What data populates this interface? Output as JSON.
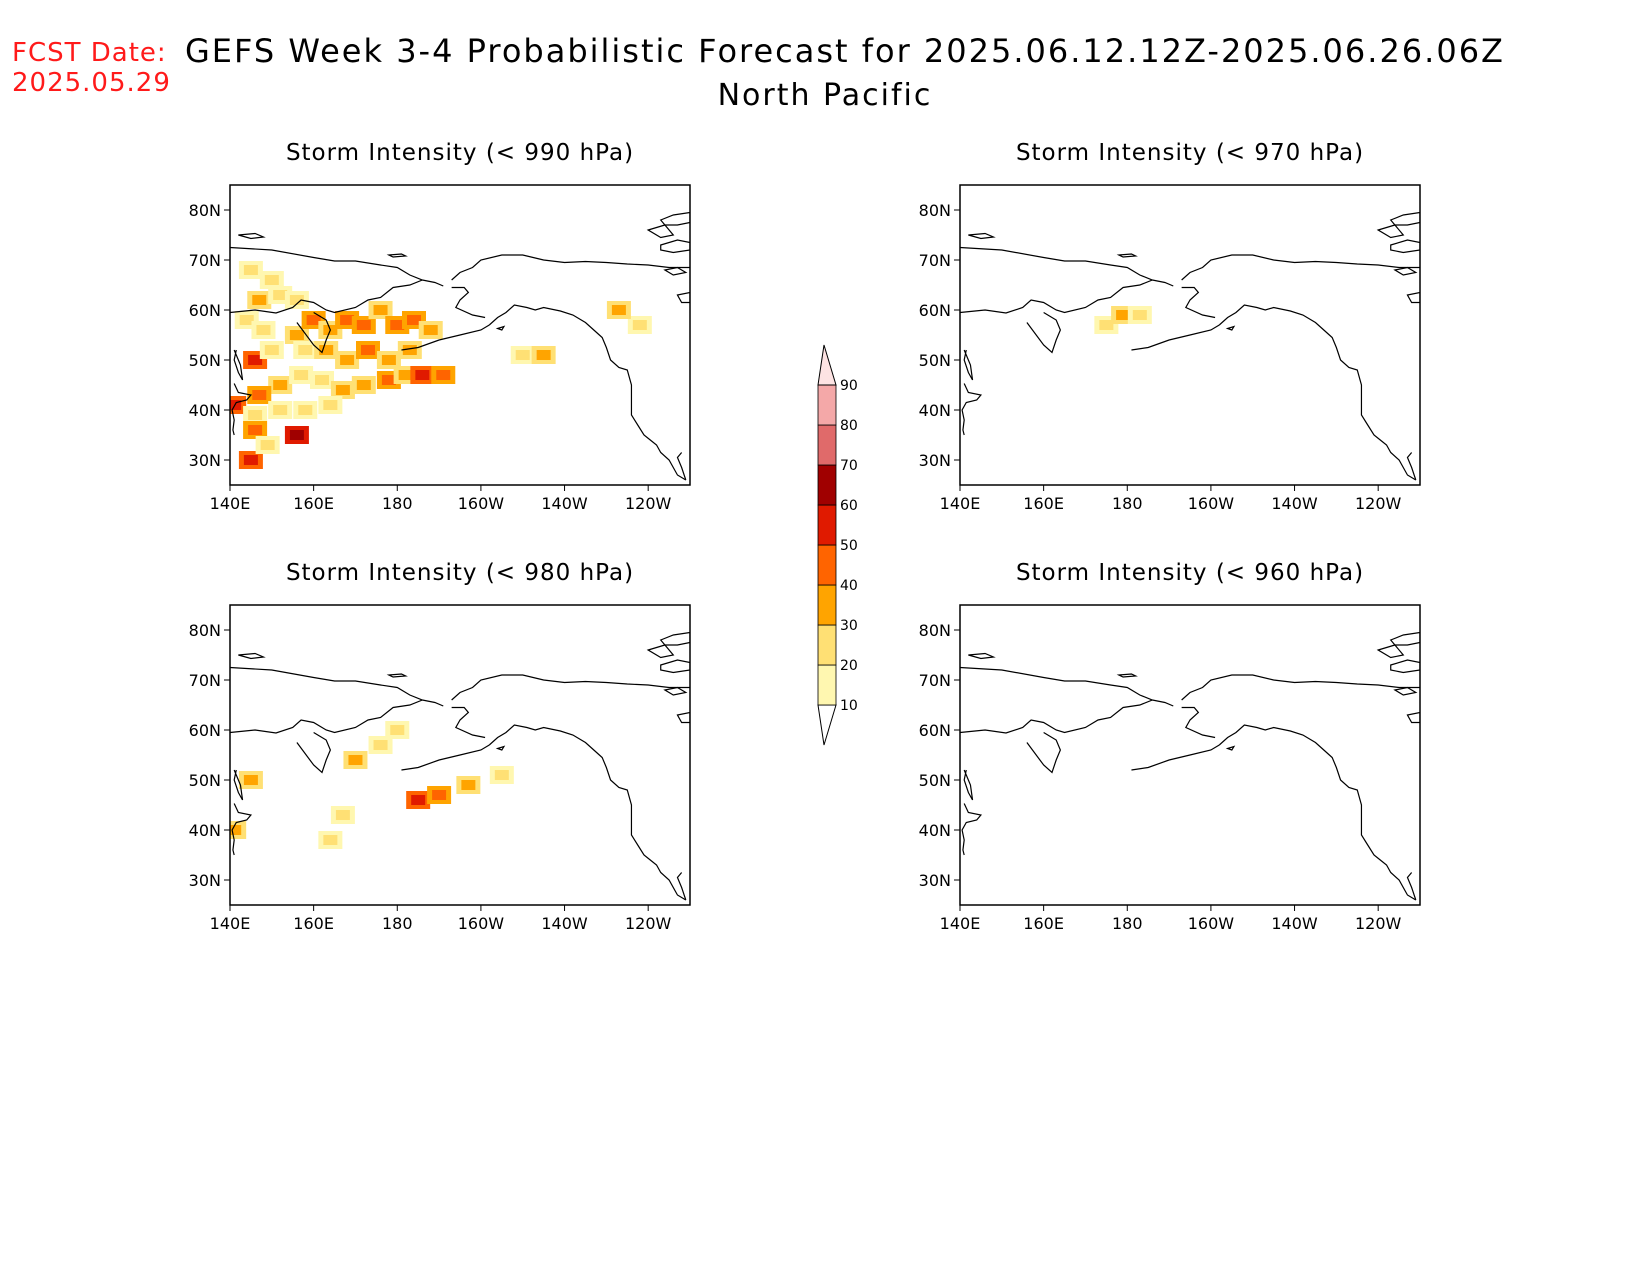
{
  "header": {
    "fcst_label": "FCST Date:",
    "fcst_date": "2025.05.29",
    "title": "GEFS Week 3-4 Probabilistic Forecast for 2025.06.12.12Z-2025.06.26.06Z",
    "subtitle": "North Pacific"
  },
  "axes": {
    "lon_labels": [
      "140E",
      "160E",
      "180",
      "160W",
      "140W",
      "120W"
    ],
    "lat_labels": [
      "80N",
      "70N",
      "60N",
      "50N",
      "40N",
      "30N"
    ]
  },
  "panels": [
    {
      "id": "p990",
      "title": "Storm Intensity (< 990 hPa)",
      "coverage": "widespread"
    },
    {
      "id": "p970",
      "title": "Storm Intensity (< 970 hPa)",
      "coverage": "small"
    },
    {
      "id": "p980",
      "title": "Storm Intensity (< 980 hPa)",
      "coverage": "scattered"
    },
    {
      "id": "p960",
      "title": "Storm Intensity (< 960 hPa)",
      "coverage": "none"
    }
  ],
  "legend": {
    "levels": [
      "10",
      "20",
      "30",
      "40",
      "50",
      "60",
      "70",
      "80",
      "90"
    ],
    "colors": [
      "#fff7b0",
      "#ffe074",
      "#ffa400",
      "#ff6400",
      "#e01a00",
      "#a00000",
      "#e06a6a",
      "#f4a8a8",
      "#fde3e3"
    ]
  },
  "shading": {
    "p990": [
      {
        "lon": 145,
        "lat": 68,
        "c": 1
      },
      {
        "lon": 150,
        "lat": 66,
        "c": 1
      },
      {
        "lon": 147,
        "lat": 62,
        "c": 2
      },
      {
        "lon": 152,
        "lat": 63,
        "c": 1
      },
      {
        "lon": 156,
        "lat": 62,
        "c": 1
      },
      {
        "lon": 144,
        "lat": 58,
        "c": 1
      },
      {
        "lon": 148,
        "lat": 56,
        "c": 1
      },
      {
        "lon": 146,
        "lat": 50,
        "c": 4
      },
      {
        "lon": 150,
        "lat": 52,
        "c": 1
      },
      {
        "lon": 156,
        "lat": 55,
        "c": 2
      },
      {
        "lon": 160,
        "lat": 58,
        "c": 3
      },
      {
        "lon": 164,
        "lat": 56,
        "c": 2
      },
      {
        "lon": 168,
        "lat": 58,
        "c": 3
      },
      {
        "lon": 172,
        "lat": 57,
        "c": 3
      },
      {
        "lon": 176,
        "lat": 60,
        "c": 2
      },
      {
        "lon": 180,
        "lat": 57,
        "c": 3
      },
      {
        "lon": 184,
        "lat": 58,
        "c": 3
      },
      {
        "lon": 188,
        "lat": 56,
        "c": 2
      },
      {
        "lon": 158,
        "lat": 52,
        "c": 1
      },
      {
        "lon": 163,
        "lat": 52,
        "c": 2
      },
      {
        "lon": 168,
        "lat": 50,
        "c": 2
      },
      {
        "lon": 173,
        "lat": 52,
        "c": 3
      },
      {
        "lon": 178,
        "lat": 50,
        "c": 2
      },
      {
        "lon": 183,
        "lat": 52,
        "c": 2
      },
      {
        "lon": 152,
        "lat": 45,
        "c": 2
      },
      {
        "lon": 157,
        "lat": 47,
        "c": 1
      },
      {
        "lon": 162,
        "lat": 46,
        "c": 1
      },
      {
        "lon": 167,
        "lat": 44,
        "c": 2
      },
      {
        "lon": 172,
        "lat": 45,
        "c": 2
      },
      {
        "lon": 178,
        "lat": 46,
        "c": 3
      },
      {
        "lon": 182,
        "lat": 47,
        "c": 2
      },
      {
        "lon": 186,
        "lat": 47,
        "c": 4
      },
      {
        "lon": 191,
        "lat": 47,
        "c": 3
      },
      {
        "lon": 147,
        "lat": 43,
        "c": 3
      },
      {
        "lon": 141,
        "lat": 41,
        "c": 4
      },
      {
        "lon": 146,
        "lat": 39,
        "c": 1
      },
      {
        "lon": 152,
        "lat": 40,
        "c": 1
      },
      {
        "lon": 158,
        "lat": 40,
        "c": 1
      },
      {
        "lon": 164,
        "lat": 41,
        "c": 1
      },
      {
        "lon": 146,
        "lat": 36,
        "c": 3
      },
      {
        "lon": 156,
        "lat": 35,
        "c": 5
      },
      {
        "lon": 145,
        "lat": 30,
        "c": 4
      },
      {
        "lon": 149,
        "lat": 33,
        "c": 1
      },
      {
        "lon": 210,
        "lat": 51,
        "c": 1
      },
      {
        "lon": 215,
        "lat": 51,
        "c": 2
      },
      {
        "lon": 238,
        "lat": 57,
        "c": 1
      },
      {
        "lon": 233,
        "lat": 60,
        "c": 2
      }
    ],
    "p970": [
      {
        "lon": 175,
        "lat": 57,
        "c": 1
      },
      {
        "lon": 179,
        "lat": 59,
        "c": 2
      },
      {
        "lon": 183,
        "lat": 59,
        "c": 1
      }
    ],
    "p980": [
      {
        "lon": 141,
        "lat": 40,
        "c": 2
      },
      {
        "lon": 145,
        "lat": 50,
        "c": 2
      },
      {
        "lon": 170,
        "lat": 54,
        "c": 2
      },
      {
        "lon": 176,
        "lat": 57,
        "c": 1
      },
      {
        "lon": 180,
        "lat": 60,
        "c": 1
      },
      {
        "lon": 167,
        "lat": 43,
        "c": 1
      },
      {
        "lon": 185,
        "lat": 46,
        "c": 4
      },
      {
        "lon": 190,
        "lat": 47,
        "c": 3
      },
      {
        "lon": 197,
        "lat": 49,
        "c": 2
      },
      {
        "lon": 205,
        "lat": 51,
        "c": 1
      },
      {
        "lon": 164,
        "lat": 38,
        "c": 1
      }
    ],
    "p960": []
  }
}
